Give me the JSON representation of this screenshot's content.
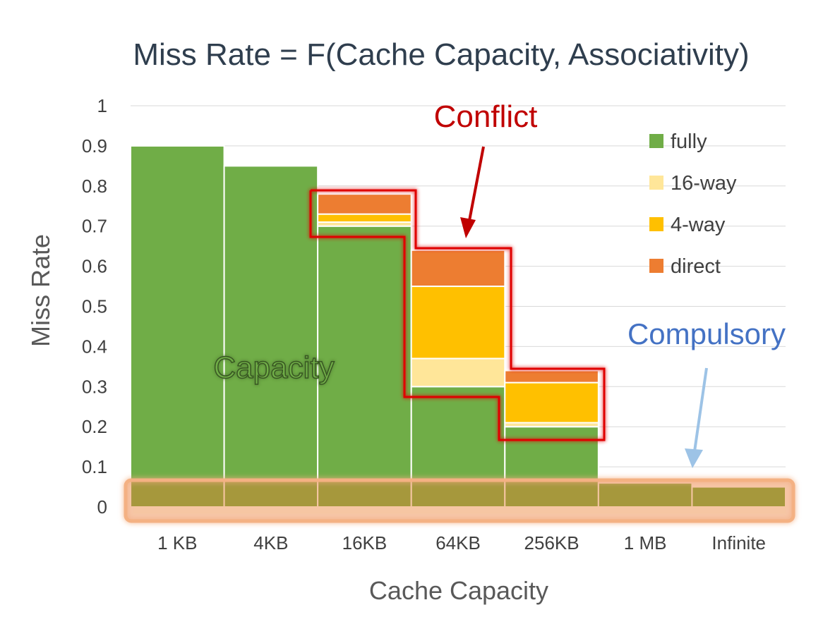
{
  "chart_data": {
    "type": "bar",
    "stacked": true,
    "title": "Miss Rate = F(Cache Capacity, Associativity)",
    "xlabel": "Cache Capacity",
    "ylabel": "Miss Rate",
    "ylim": [
      0,
      1
    ],
    "yticks": [
      "0",
      "0.1",
      "0.2",
      "0.3",
      "0.4",
      "0.5",
      "0.6",
      "0.7",
      "0.8",
      "0.9",
      "1"
    ],
    "categories": [
      "1 KB",
      "4KB",
      "16KB",
      "64KB",
      "256KB",
      "1 MB",
      "Infinite"
    ],
    "series": [
      {
        "name": "fully",
        "color": "#70ad47",
        "values": [
          0.9,
          0.85,
          0.7,
          0.3,
          0.2,
          0.06,
          0.05
        ]
      },
      {
        "name": "16-way",
        "color": "#ffe699",
        "values": [
          0,
          0,
          0.01,
          0.07,
          0.01,
          0,
          0
        ]
      },
      {
        "name": "4-way",
        "color": "#ffc000",
        "values": [
          0,
          0,
          0.02,
          0.18,
          0.1,
          0,
          0
        ]
      },
      {
        "name": "direct",
        "color": "#ed7d31",
        "values": [
          0,
          0,
          0.05,
          0.09,
          0.03,
          0,
          0
        ]
      }
    ],
    "legend_position": "top-right",
    "grid": true,
    "annotations": {
      "conflict": {
        "text": "Conflict",
        "color": "#c00000"
      },
      "capacity": {
        "text": "Capacity",
        "color": "#70ad47"
      },
      "compulsory": {
        "text": "Compulsory",
        "color": "#4472c4"
      }
    }
  }
}
